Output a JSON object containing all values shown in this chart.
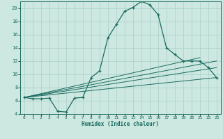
{
  "xlabel": "Humidex (Indice chaleur)",
  "bg_color": "#cce8e0",
  "grid_color": "#aacfc8",
  "line_color": "#1a6b60",
  "xlim": [
    -0.5,
    23.5
  ],
  "ylim": [
    4,
    21
  ],
  "xticks": [
    0,
    1,
    2,
    3,
    4,
    5,
    6,
    7,
    8,
    9,
    10,
    11,
    12,
    13,
    14,
    15,
    16,
    17,
    18,
    19,
    20,
    21,
    22,
    23
  ],
  "yticks": [
    4,
    6,
    8,
    10,
    12,
    14,
    16,
    18,
    20
  ],
  "curve1_x": [
    0,
    1,
    2,
    3,
    4,
    5,
    6,
    7,
    8,
    9,
    10,
    11,
    12,
    13,
    14,
    15,
    16,
    17,
    18,
    19,
    20,
    21,
    22,
    23
  ],
  "curve1_y": [
    6.5,
    6.3,
    6.3,
    6.4,
    4.4,
    4.3,
    6.4,
    6.5,
    9.5,
    10.5,
    15.5,
    17.5,
    19.5,
    20.1,
    21.0,
    20.5,
    19.0,
    14.0,
    13.0,
    12.0,
    12.0,
    12.0,
    11.0,
    9.5
  ],
  "line1_x": [
    0,
    23
  ],
  "line1_y": [
    6.5,
    9.5
  ],
  "line2_x": [
    0,
    23
  ],
  "line2_y": [
    6.5,
    11.0
  ],
  "line3_x": [
    0,
    23
  ],
  "line3_y": [
    6.5,
    12.0
  ],
  "line4_x": [
    0,
    21
  ],
  "line4_y": [
    6.5,
    12.5
  ]
}
